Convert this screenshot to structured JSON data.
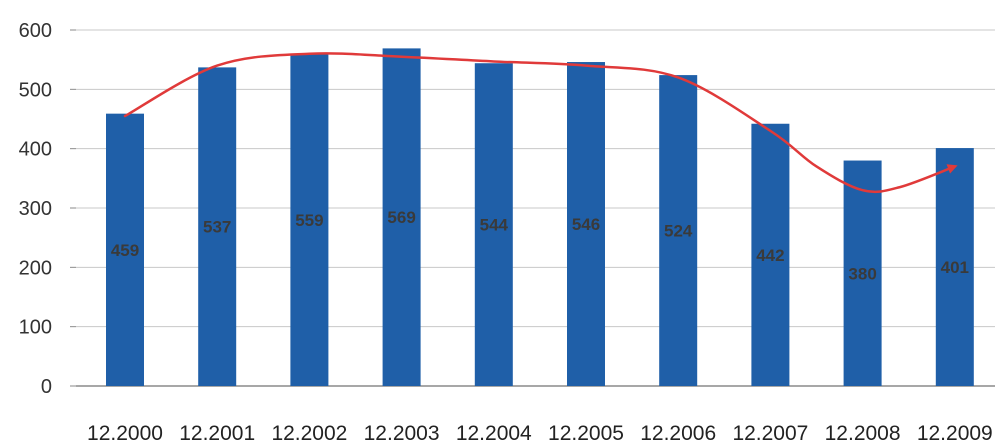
{
  "chart_data": {
    "type": "bar",
    "categories": [
      "12.2000",
      "12.2001",
      "12.2002",
      "12.2003",
      "12.2004",
      "12.2005",
      "12.2006",
      "12.2007",
      "12.2008",
      "12.2009"
    ],
    "values": [
      459,
      537,
      559,
      569,
      544,
      546,
      524,
      442,
      380,
      401
    ],
    "data_labels": [
      "459",
      "537",
      "559",
      "569",
      "544",
      "546",
      "524",
      "442",
      "380",
      "401"
    ],
    "ylim": [
      0,
      600
    ],
    "yticks": [
      0,
      100,
      200,
      300,
      400,
      500,
      600
    ],
    "title": "",
    "xlabel": "",
    "ylabel": "",
    "grid": true,
    "bar_color": "#1f5fa8",
    "trend_line": {
      "color": "#e03a3a",
      "points": [
        [
          0,
          455
        ],
        [
          1,
          540
        ],
        [
          2,
          560
        ],
        [
          3,
          555
        ],
        [
          4,
          547
        ],
        [
          5,
          540
        ],
        [
          6,
          520
        ],
        [
          7,
          430
        ],
        [
          7.5,
          370
        ],
        [
          8,
          330
        ],
        [
          8.4,
          335
        ],
        [
          9,
          370
        ]
      ]
    }
  }
}
